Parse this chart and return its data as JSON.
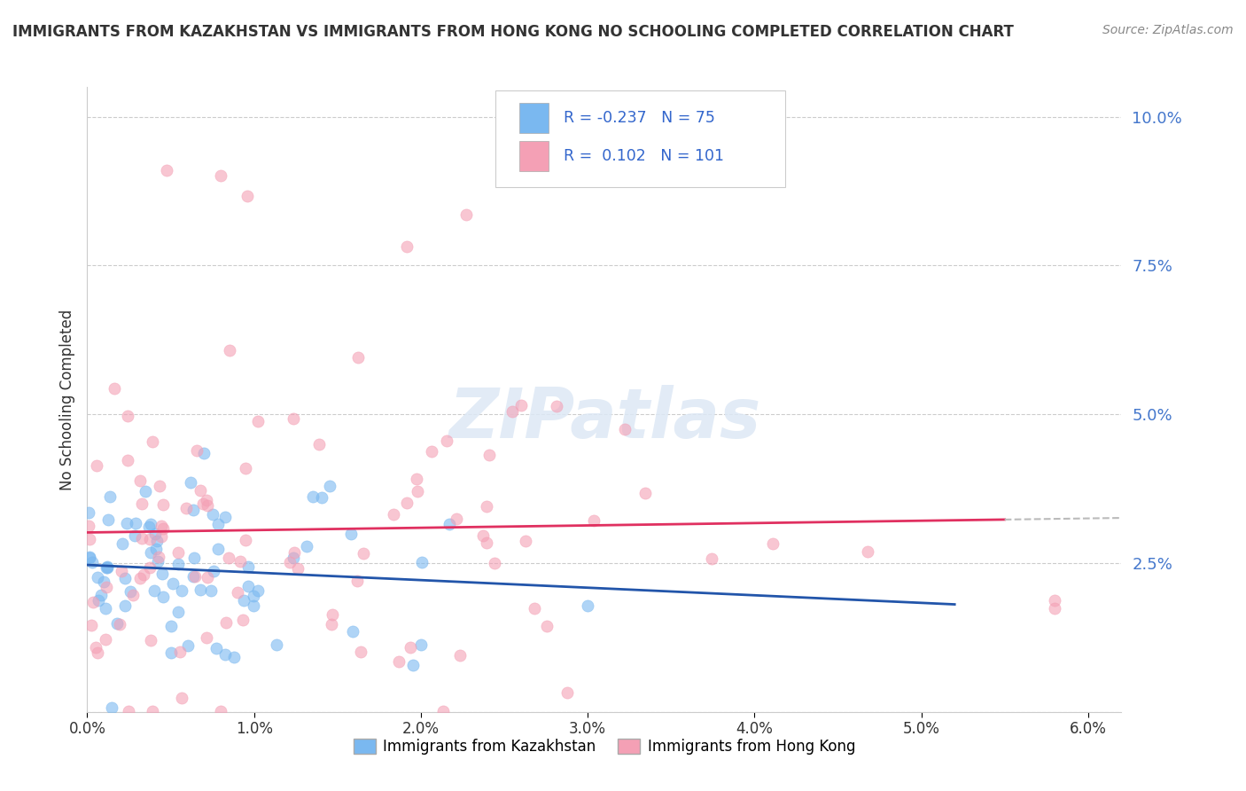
{
  "title": "IMMIGRANTS FROM KAZAKHSTAN VS IMMIGRANTS FROM HONG KONG NO SCHOOLING COMPLETED CORRELATION CHART",
  "source": "Source: ZipAtlas.com",
  "ylabel": "No Schooling Completed",
  "legend_label1": "Immigrants from Kazakhstan",
  "legend_label2": "Immigrants from Hong Kong",
  "R1": -0.237,
  "N1": 75,
  "R2": 0.102,
  "N2": 101,
  "color1": "#7ab8f0",
  "color2": "#f4a0b5",
  "trendline1_color": "#2255aa",
  "trendline2_color": "#e03060",
  "dash_color": "#bbbbbb",
  "xlim": [
    0.0,
    0.062
  ],
  "ylim": [
    0.0,
    0.105
  ],
  "yticks": [
    0.0,
    0.025,
    0.05,
    0.075,
    0.1
  ],
  "ytick_labels": [
    "",
    "2.5%",
    "5.0%",
    "7.5%",
    "10.0%"
  ],
  "xticks": [
    0.0,
    0.01,
    0.02,
    0.03,
    0.04,
    0.05,
    0.06
  ],
  "xtick_labels": [
    "0.0%",
    "1.0%",
    "2.0%",
    "3.0%",
    "4.0%",
    "5.0%",
    "6.0%"
  ],
  "watermark": "ZIPatlas",
  "background_color": "#ffffff",
  "grid_color": "#cccccc",
  "tick_color": "#4477cc",
  "legend_text_color": "#3366cc",
  "title_color": "#333333"
}
